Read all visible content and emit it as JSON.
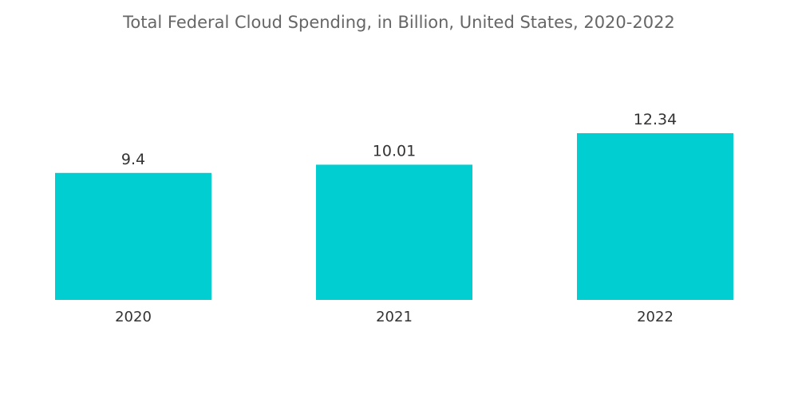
{
  "chart_data": {
    "type": "bar",
    "title": "Total Federal Cloud Spending, in Billion, United States, 2020-2022",
    "categories": [
      "2020",
      "2021",
      "2022"
    ],
    "values": [
      9.4,
      10.01,
      12.34
    ],
    "value_labels": [
      "9.4",
      "10.01",
      "12.34"
    ],
    "xlabel": "",
    "ylabel": "",
    "ylim": [
      0,
      12.34
    ],
    "grid": false,
    "show_y_axis": false,
    "bar_color": "#00CED1"
  }
}
